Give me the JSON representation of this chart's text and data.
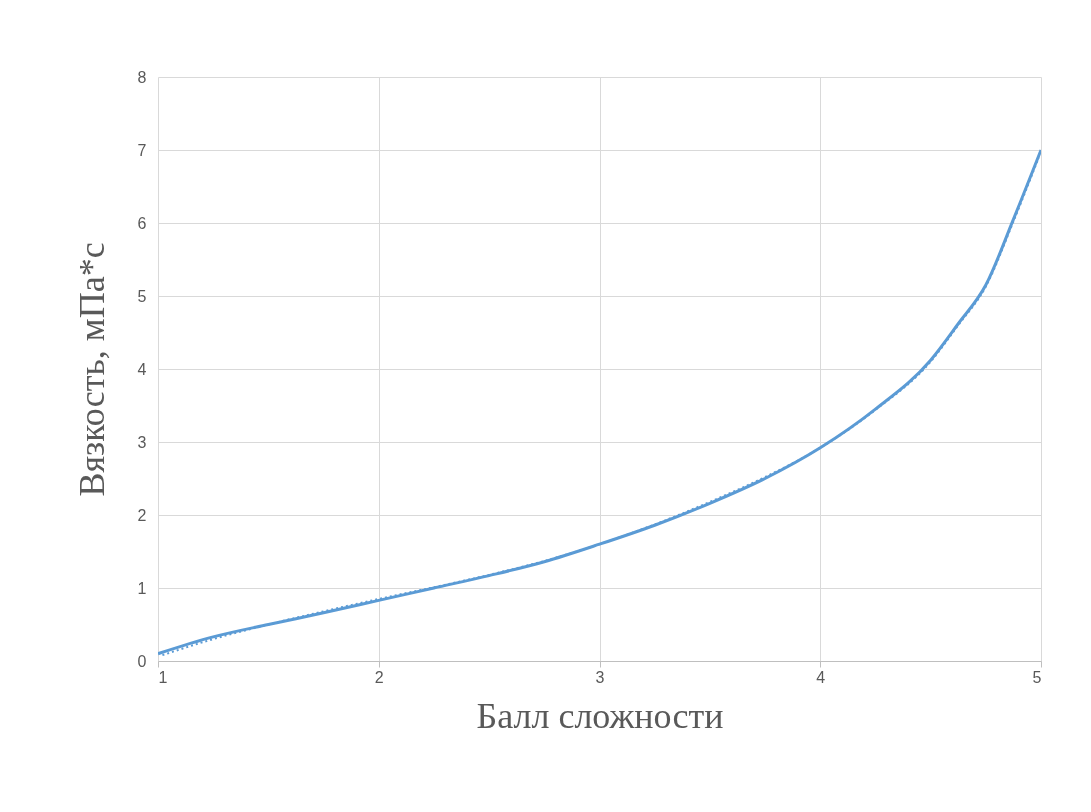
{
  "chart_data": {
    "type": "line",
    "xlabel": "Балл сложности",
    "ylabel": "Вязкость, мПа*с",
    "xlim": [
      1,
      5
    ],
    "xticks": [
      1,
      2,
      3,
      4,
      5
    ],
    "ylim": [
      0,
      8
    ],
    "yticks": [
      0,
      1,
      2,
      3,
      4,
      5,
      6,
      7,
      8
    ],
    "grid": true,
    "marker": "none",
    "series": [
      {
        "color": "#5b9bd5",
        "line_style": "solid",
        "x": [
          1,
          1.25,
          1.5,
          1.75,
          2,
          2.25,
          2.5,
          2.75,
          3,
          3.25,
          3.5,
          3.75,
          4,
          4.25,
          4.5,
          4.625,
          4.75,
          4.875,
          5
        ],
        "values": [
          0.1,
          0.33,
          0.5,
          0.66,
          0.83,
          1.0,
          1.17,
          1.36,
          1.6,
          1.86,
          2.16,
          2.5,
          2.92,
          3.45,
          4.12,
          4.62,
          5.15,
          6.05,
          7.0
        ]
      },
      {
        "type": "line",
        "color": "#5b9bd5",
        "line_style": "dotted",
        "x": [
          1.02,
          1.25,
          1.5,
          1.75,
          2,
          2.25,
          2.5,
          2.75,
          3,
          3.25,
          3.5,
          3.75,
          4,
          4.25,
          4.5,
          4.625,
          4.75,
          4.875,
          4.99
        ],
        "values": [
          0.08,
          0.3,
          0.5,
          0.68,
          0.85,
          1.01,
          1.18,
          1.37,
          1.6,
          1.87,
          2.18,
          2.52,
          2.92,
          3.44,
          4.1,
          4.6,
          5.13,
          6.02,
          6.9
        ]
      }
    ]
  }
}
